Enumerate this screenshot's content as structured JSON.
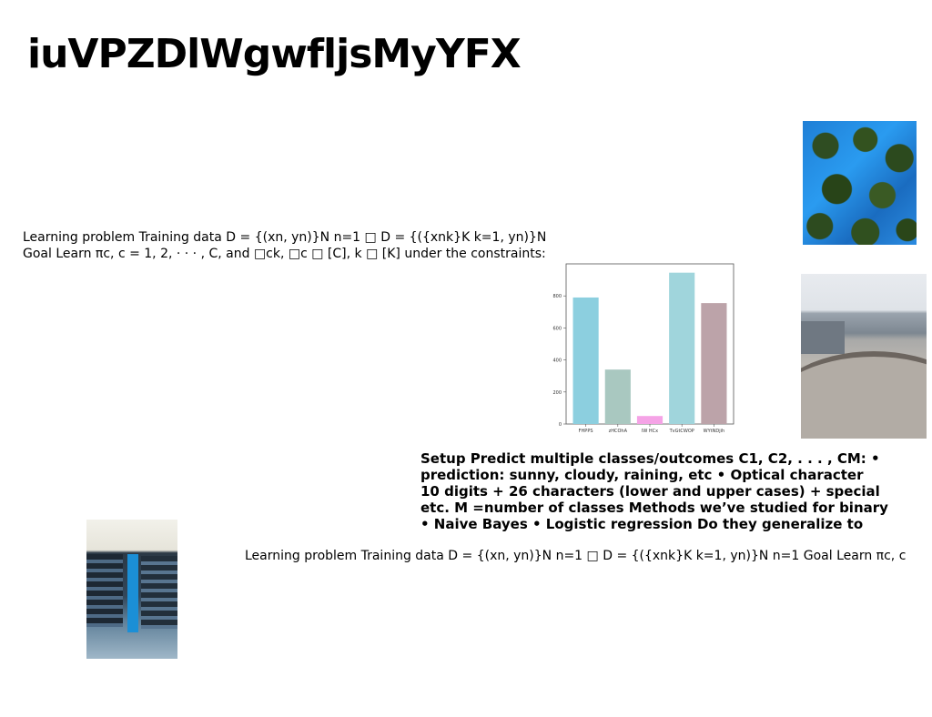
{
  "slide": {
    "title": "iuVPZDlWgwfljsMyYFX"
  },
  "text_block_1": {
    "lines": [
      "Learning problem Training data D = {(xn, yn)}N n=1 □ D = {({xnk}K k=1, yn)}N",
      "Goal Learn πc, c = 1, 2, · · · , C, and □ck, □c □ [C], k □ [K] under the constraints:"
    ]
  },
  "text_block_2": {
    "lines": [
      "Setup Predict multiple classes/outcomes C1, C2, . . . , CM: •",
      "prediction: sunny, cloudy, raining, etc • Optical character",
      "10 digits + 26 characters (lower and upper cases) + special",
      "etc. M =number of classes Methods we’ve studied for binary",
      "• Naive Bayes • Logistic regression Do they generalize to"
    ]
  },
  "text_block_3": {
    "line": "Learning problem Training data D = {(xn, yn)}N n=1 □ D = {({xnk}K k=1, yn)}N n=1 Goal Learn πc, c"
  },
  "images": {
    "avocados": "photo of avocados painted blue",
    "skatepark": "photo of a skatepark",
    "library": "photo of library bookshelves"
  },
  "chart_data": {
    "type": "bar",
    "categories": [
      "FHPPS",
      "zHCOhA",
      "IW HCx",
      "TvGtCWOP",
      "WYtNDjih"
    ],
    "values": [
      790,
      340,
      50,
      945,
      755
    ],
    "colors": [
      "#8ccfdf",
      "#a9c8c0",
      "#f5a3e6",
      "#a0d5dc",
      "#bca3a9"
    ],
    "yticks": [
      "0",
      "200",
      "400",
      "600",
      "800"
    ],
    "ylim": [
      0,
      1000
    ],
    "title": "",
    "xlabel": "",
    "ylabel": ""
  }
}
